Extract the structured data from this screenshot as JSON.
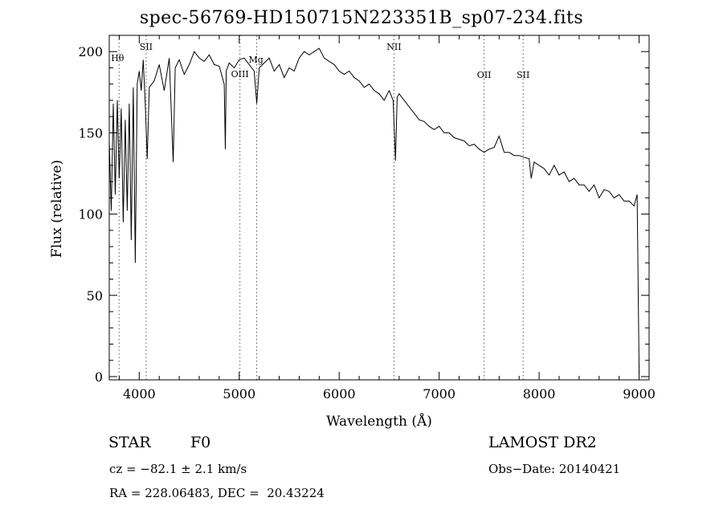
{
  "chart_data": {
    "type": "line",
    "title": "spec-56769-HD150715N223351B_sp07-234.fits",
    "xlabel": "Wavelength (Å)",
    "ylabel": "Flux (relative)",
    "xlim": [
      3700,
      9100
    ],
    "ylim": [
      -2,
      210
    ],
    "xticks": [
      4000,
      5000,
      6000,
      7000,
      8000,
      9000
    ],
    "yticks": [
      0,
      50,
      100,
      150,
      200
    ],
    "grid": false,
    "legend": "none",
    "line_color": "#000000",
    "series": [
      {
        "x": [
          3700,
          3720,
          3740,
          3760,
          3780,
          3800,
          3820,
          3840,
          3860,
          3880,
          3900,
          3920,
          3940,
          3960,
          3980,
          4000,
          4020,
          4040,
          4060,
          4080,
          4100,
          4150,
          4200,
          4250,
          4300,
          4340,
          4360,
          4400,
          4450,
          4500,
          4550,
          4600,
          4650,
          4700,
          4750,
          4800,
          4850,
          4861,
          4870,
          4900,
          4950,
          5000,
          5050,
          5100,
          5150,
          5175,
          5200,
          5250,
          5300,
          5350,
          5400,
          5450,
          5500,
          5550,
          5600,
          5650,
          5700,
          5750,
          5800,
          5850,
          5900,
          5950,
          6000,
          6050,
          6100,
          6150,
          6200,
          6250,
          6300,
          6350,
          6400,
          6450,
          6500,
          6540,
          6563,
          6580,
          6600,
          6650,
          6700,
          6750,
          6800,
          6850,
          6900,
          6950,
          7000,
          7050,
          7100,
          7150,
          7200,
          7250,
          7300,
          7350,
          7400,
          7450,
          7500,
          7550,
          7600,
          7650,
          7700,
          7750,
          7800,
          7850,
          7900,
          7920,
          7950,
          8000,
          8050,
          8100,
          8150,
          8200,
          8250,
          8300,
          8350,
          8400,
          8450,
          8500,
          8550,
          8600,
          8650,
          8700,
          8750,
          8800,
          8850,
          8900,
          8950,
          8980,
          9000
        ],
        "y": [
          145,
          102,
          168,
          112,
          170,
          122,
          165,
          95,
          158,
          102,
          168,
          84,
          178,
          70,
          180,
          188,
          176,
          195,
          168,
          134,
          178,
          182,
          192,
          176,
          196,
          132,
          190,
          195,
          186,
          192,
          200,
          196,
          194,
          198,
          192,
          191,
          180,
          140,
          188,
          193,
          190,
          195,
          196,
          192,
          188,
          168,
          190,
          193,
          196,
          188,
          192,
          184,
          190,
          188,
          196,
          200,
          198,
          200,
          202,
          196,
          194,
          192,
          188,
          186,
          188,
          184,
          182,
          178,
          180,
          176,
          174,
          170,
          176,
          170,
          133,
          172,
          174,
          170,
          166,
          162,
          158,
          157,
          154,
          152,
          154,
          150,
          150,
          147,
          146,
          145,
          142,
          143,
          140,
          138,
          140,
          141,
          148,
          138,
          138,
          136,
          136,
          135,
          134,
          122,
          132,
          130,
          128,
          124,
          130,
          124,
          126,
          120,
          122,
          118,
          118,
          114,
          118,
          110,
          115,
          114,
          110,
          112,
          108,
          108,
          105,
          112,
          2
        ]
      }
    ],
    "line_annotations": [
      {
        "label": "Hθ",
        "x": 3798
      },
      {
        "label": "SII",
        "x": 4069
      },
      {
        "label": "OIII",
        "x": 5007
      },
      {
        "label": "Mg",
        "x": 5175
      },
      {
        "label": "NII",
        "x": 6548
      },
      {
        "label": "OII",
        "x": 7450
      },
      {
        "label": "SII",
        "x": 7840
      }
    ]
  },
  "info": {
    "object_type": "STAR",
    "subclass": "F0",
    "survey": "LAMOST DR2",
    "cz": "cz = −82.1 ± 2.1 km/s",
    "obs_date": "Obs−Date: 20140421",
    "coords": "RA = 228.06483, DEC =  20.43224"
  }
}
